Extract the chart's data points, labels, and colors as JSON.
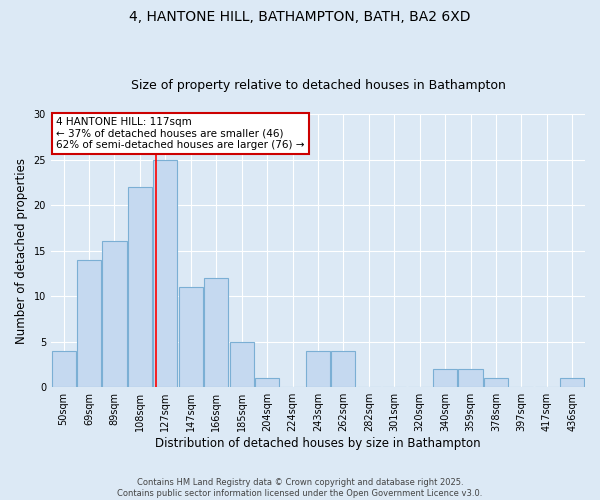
{
  "title": "4, HANTONE HILL, BATHAMPTON, BATH, BA2 6XD",
  "subtitle": "Size of property relative to detached houses in Bathampton",
  "xlabel": "Distribution of detached houses by size in Bathampton",
  "ylabel": "Number of detached properties",
  "bins": [
    "50sqm",
    "69sqm",
    "89sqm",
    "108sqm",
    "127sqm",
    "147sqm",
    "166sqm",
    "185sqm",
    "204sqm",
    "224sqm",
    "243sqm",
    "262sqm",
    "282sqm",
    "301sqm",
    "320sqm",
    "340sqm",
    "359sqm",
    "378sqm",
    "397sqm",
    "417sqm",
    "436sqm"
  ],
  "values": [
    4,
    14,
    16,
    22,
    25,
    11,
    12,
    5,
    1,
    0,
    4,
    4,
    0,
    0,
    0,
    2,
    2,
    1,
    0,
    0,
    1
  ],
  "bar_color": "#c5d9f0",
  "bar_edge_color": "#7bafd4",
  "background_color": "#dce9f5",
  "grid_color": "#ffffff",
  "red_line_x": 3.62,
  "annotation_text": "4 HANTONE HILL: 117sqm\n← 37% of detached houses are smaller (46)\n62% of semi-detached houses are larger (76) →",
  "annotation_box_color": "#ffffff",
  "annotation_box_edge_color": "#cc0000",
  "footer_text": "Contains HM Land Registry data © Crown copyright and database right 2025.\nContains public sector information licensed under the Open Government Licence v3.0.",
  "ylim": [
    0,
    30
  ],
  "title_fontsize": 10,
  "subtitle_fontsize": 9,
  "axis_label_fontsize": 8.5,
  "tick_fontsize": 7,
  "annotation_fontsize": 7.5,
  "footer_fontsize": 6
}
